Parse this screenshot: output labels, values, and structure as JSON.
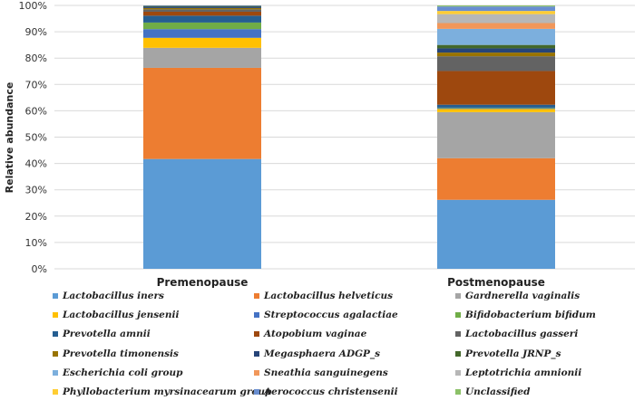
{
  "chart_data": {
    "type": "bar",
    "stacked": true,
    "title": "",
    "xlabel": "",
    "ylabel": "Relative abundance",
    "ylim": [
      0,
      100
    ],
    "yticks": [
      "0%",
      "10%",
      "20%",
      "30%",
      "40%",
      "50%",
      "60%",
      "70%",
      "80%",
      "90%",
      "100%"
    ],
    "categories": [
      "Premenopause",
      "Postmenopause"
    ],
    "series": [
      {
        "name": "Lactobacillus iners",
        "color": "#5b9bd5",
        "values": [
          41.7,
          26.2
        ]
      },
      {
        "name": "Lactobacillus helveticus",
        "color": "#ed7d31",
        "values": [
          34.6,
          15.8
        ]
      },
      {
        "name": "Gardnerella vaginalis",
        "color": "#a5a5a5",
        "values": [
          7.6,
          17.5
        ]
      },
      {
        "name": "Lactobacillus jensenii",
        "color": "#ffc000",
        "values": [
          3.8,
          1.2
        ]
      },
      {
        "name": "Streptococcus agalactiae",
        "color": "#4472c4",
        "values": [
          3.3,
          0.3
        ]
      },
      {
        "name": "Bifidobacterium bifidum",
        "color": "#70ad47",
        "values": [
          2.5,
          0.2
        ]
      },
      {
        "name": "Prevotella amnii",
        "color": "#255e91",
        "values": [
          2.6,
          1.1
        ]
      },
      {
        "name": "Atopobium vaginae",
        "color": "#9e480e",
        "values": [
          1.5,
          12.8
        ]
      },
      {
        "name": "Lactobacillus gasseri",
        "color": "#636363",
        "values": [
          0.9,
          5.6
        ]
      },
      {
        "name": "Prevotella timonensis",
        "color": "#997300",
        "values": [
          0.5,
          1.4
        ]
      },
      {
        "name": "Megasphaera ADGP_s",
        "color": "#264478",
        "values": [
          0.5,
          1.6
        ]
      },
      {
        "name": "Prevotella JRNP_s",
        "color": "#43682b",
        "values": [
          0.3,
          1.3
        ]
      },
      {
        "name": "Escherichia coli group",
        "color": "#7cafdd",
        "values": [
          0.0,
          6.1
        ]
      },
      {
        "name": "Sneathia sanguinegens",
        "color": "#f1975a",
        "values": [
          0.0,
          2.2
        ]
      },
      {
        "name": "Leptotrichia amnionii",
        "color": "#b7b7b7",
        "values": [
          0.0,
          3.4
        ]
      },
      {
        "name": "Phyllobacterium myrsinacearum group",
        "color": "#ffcd33",
        "values": [
          0.0,
          1.2
        ]
      },
      {
        "name": "Aerococcus christensenii",
        "color": "#698ed0",
        "values": [
          0.2,
          1.7
        ]
      },
      {
        "name": "Unclassified",
        "color": "#8cc168",
        "values": [
          0.0,
          0.4
        ]
      }
    ]
  }
}
